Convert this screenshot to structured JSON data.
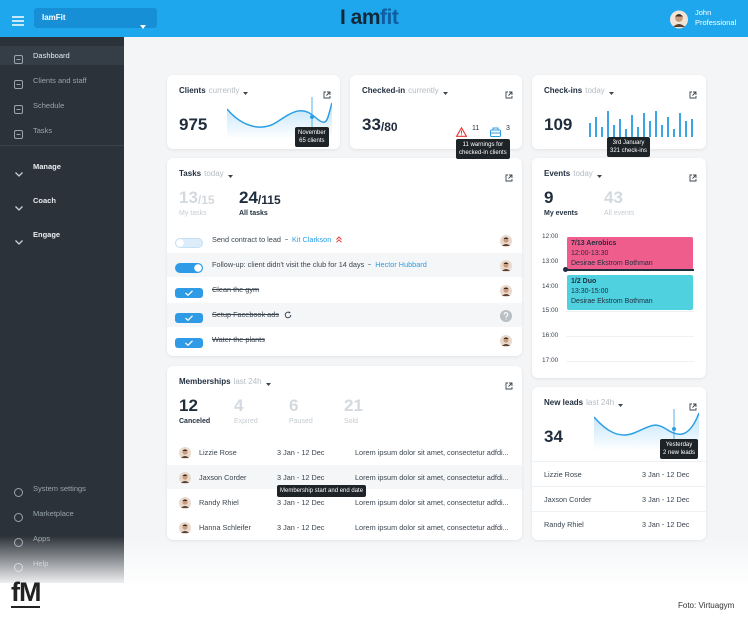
{
  "topbar": {
    "account": "IamFit",
    "logo": {
      "prefix": "I am",
      "suffix": "fit"
    },
    "user": {
      "name": "John",
      "role": "Professional"
    }
  },
  "sidebar": {
    "items": [
      "Dashboard",
      "Clients and staff",
      "Schedule",
      "Tasks"
    ],
    "sections": [
      "Manage",
      "Coach",
      "Engage"
    ],
    "footer_items": [
      "System settings",
      "Marketplace",
      "Apps",
      "Help"
    ]
  },
  "clients": {
    "title": "Clients",
    "period": "currently",
    "value": "975",
    "tooltip": [
      "November",
      "65 clients"
    ]
  },
  "checked_in": {
    "title": "Checked-in",
    "period": "currently",
    "value": "33",
    "total": "/80",
    "warnings": "11",
    "alerts": "3",
    "tooltip": [
      "11 warnings for",
      "checked-in clients"
    ]
  },
  "check_ins": {
    "title": "Check-ins",
    "period": "today",
    "value": "109",
    "tooltip": [
      "3rd January",
      "321 check-ins"
    ]
  },
  "tasks": {
    "title": "Tasks",
    "period": "today",
    "stats": [
      {
        "value": "13",
        "total": "/15",
        "label": "My tasks"
      },
      {
        "value": "24",
        "total": "/115",
        "label": "All tasks"
      }
    ],
    "items": [
      {
        "text": "Send contract to lead",
        "assignee": "Kit Clarkson",
        "done": false,
        "on": false
      },
      {
        "text": "Follow-up: client didn't visit the club for 14 days",
        "assignee": "Hector Hubbard",
        "done": false,
        "on": true
      },
      {
        "text": "Clean the gym",
        "done": true
      },
      {
        "text": "Setup Facebook ads",
        "done": true
      },
      {
        "text": "Water the plants",
        "done": true
      }
    ]
  },
  "events": {
    "title": "Events",
    "period": "today",
    "stats": [
      {
        "value": "9",
        "label": "My events"
      },
      {
        "value": "43",
        "label": "All events"
      }
    ],
    "times": [
      "12:00",
      "13:00",
      "14:00",
      "15:00",
      "16:00",
      "17:00"
    ],
    "items": [
      {
        "name": "7/13 Aerobics",
        "time": "12:00-13:30",
        "host": "Desirae Ekstrom Bothman",
        "color": "#ef5d8d"
      },
      {
        "name": "1/2 Duo",
        "time": "13:30-15:00",
        "host": "Desirae Ekstrom Bothman",
        "color": "#4fd1df"
      }
    ]
  },
  "memberships": {
    "title": "Memberships",
    "period": "last 24h",
    "stats": [
      {
        "value": "12",
        "label": "Canceled"
      },
      {
        "value": "4",
        "label": "Expired"
      },
      {
        "value": "6",
        "label": "Paused"
      },
      {
        "value": "21",
        "label": "Sold"
      }
    ],
    "rows": [
      {
        "name": "Lizzie Rose",
        "dates": "3 Jan - 12 Dec",
        "description": "Lorem ipsum dolor sit amet, consectetur adfdi..."
      },
      {
        "name": "Jaxson Corder",
        "dates": "3 Jan - 12 Dec",
        "description": "Lorem ipsum dolor sit amet, consectetur adfdi..."
      },
      {
        "name": "Randy Rhiel",
        "dates": "3 Jan - 12 Dec",
        "description": "Lorem ipsum dolor sit amet, consectetur adfdi..."
      },
      {
        "name": "Hanna Schleifer",
        "dates": "3 Jan - 12 Dec",
        "description": "Lorem ipsum dolor sit amet, consectetur adfdi..."
      }
    ],
    "tooltip": "Membership start and end date"
  },
  "new_leads": {
    "title": "New leads",
    "period": "last 24h",
    "value": "34",
    "tooltip": [
      "Yesterday",
      "2 new leads"
    ],
    "rows": [
      {
        "name": "Lizzie Rose",
        "dates": "3 Jan - 12 Dec"
      },
      {
        "name": "Jaxson Corder",
        "dates": "3 Jan - 12 Dec"
      },
      {
        "name": "Randy Rhiel",
        "dates": "3 Jan - 12 Dec"
      }
    ]
  },
  "footer": {
    "logo": "fM",
    "credit": "Foto: Virtuagym"
  }
}
